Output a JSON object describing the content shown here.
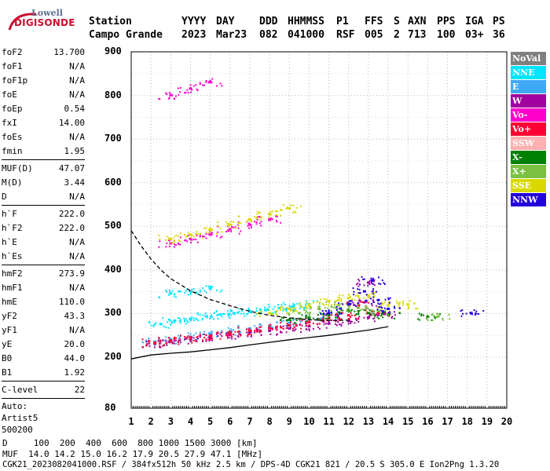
{
  "logo": {
    "line1": "Lowell",
    "line2": "DIGISONDE"
  },
  "header": {
    "row1": [
      "Station",
      "YYYY",
      "DAY",
      "DDD",
      "HHMMSS",
      "P1",
      "FFS",
      "S",
      "AXN",
      "PPS",
      "IGA",
      "PS"
    ],
    "row2": [
      "Campo Grande",
      "2023",
      "Mar23",
      "082",
      "041000",
      "RSF",
      "005",
      "2",
      "713",
      "100",
      "03+",
      "36"
    ]
  },
  "params": {
    "group1": [
      {
        "name": "foF2",
        "value": "13.700"
      },
      {
        "name": "foF1",
        "value": "N/A"
      },
      {
        "name": "foF1p",
        "value": "N/A"
      },
      {
        "name": "foE",
        "value": "N/A"
      },
      {
        "name": "foEp",
        "value": "0.54"
      },
      {
        "name": "fxI",
        "value": "14.00"
      },
      {
        "name": "foEs",
        "value": "N/A"
      },
      {
        "name": "fmin",
        "value": "1.95"
      }
    ],
    "group2": [
      {
        "name": "MUF(D)",
        "value": "47.07"
      },
      {
        "name": "M(D)",
        "value": "3.44"
      },
      {
        "name": "D",
        "value": "N/A"
      }
    ],
    "group3": [
      {
        "name": "h`F",
        "value": "222.0"
      },
      {
        "name": "h`F2",
        "value": "222.0"
      },
      {
        "name": "h`E",
        "value": "N/A"
      },
      {
        "name": "h`Es",
        "value": "N/A"
      }
    ],
    "group4": [
      {
        "name": "hmF2",
        "value": "273.9"
      },
      {
        "name": "hmF1",
        "value": "N/A"
      },
      {
        "name": "hmE",
        "value": "110.0"
      },
      {
        "name": "yF2",
        "value": "43.3"
      },
      {
        "name": "yF1",
        "value": "N/A"
      },
      {
        "name": "yE",
        "value": "20.0"
      },
      {
        "name": "B0",
        "value": "44.0"
      },
      {
        "name": "B1",
        "value": "1.92"
      }
    ],
    "group5": [
      {
        "name": "C-level",
        "value": "22"
      }
    ],
    "auto": [
      "Auto:",
      "Artist5",
      "500200"
    ]
  },
  "legend": [
    {
      "label": "NoVal",
      "color": "#808080"
    },
    {
      "label": "NNE",
      "color": "#00e5ff"
    },
    {
      "label": "E",
      "color": "#3fa9f5"
    },
    {
      "label": "W",
      "color": "#a0009e"
    },
    {
      "label": "Vo-",
      "color": "#ff00cc"
    },
    {
      "label": "Vo+",
      "color": "#ff0033"
    },
    {
      "label": "SSW",
      "color": "#ffb0b0"
    },
    {
      "label": "X-",
      "color": "#008000"
    },
    {
      "label": "X+",
      "color": "#7ac142"
    },
    {
      "label": "SSE",
      "color": "#d9d900"
    },
    {
      "label": "NNW",
      "color": "#2200dd"
    }
  ],
  "chart_data": {
    "type": "scatter",
    "x_ticks": [
      "1",
      "2",
      "3",
      "4",
      "5",
      "6",
      "7",
      "8",
      "9",
      "10",
      "11",
      "12",
      "13",
      "14",
      "15",
      "16",
      "17",
      "18",
      "19",
      "20"
    ],
    "y_ticks": [
      "80",
      "200",
      "300",
      "400",
      "500",
      "600",
      "700",
      "800",
      "900"
    ],
    "xlim": [
      1,
      20
    ],
    "ylim": [
      80,
      900
    ],
    "grid": true,
    "series": [
      {
        "name": "NNE",
        "color": "#00e5ff",
        "points": [
          [
            2.5,
            275
          ],
          [
            3.2,
            283
          ],
          [
            4,
            287
          ],
          [
            4.8,
            293
          ],
          [
            5.5,
            297
          ],
          [
            6.2,
            300
          ],
          [
            7,
            303
          ],
          [
            7.8,
            307
          ],
          [
            8.5,
            312
          ],
          [
            9.2,
            316
          ],
          [
            10,
            320
          ],
          [
            3,
            345
          ],
          [
            4,
            350
          ],
          [
            5,
            356
          ]
        ]
      },
      {
        "name": "E",
        "color": "#3fa9f5",
        "points": [
          [
            2.2,
            235
          ],
          [
            3,
            240
          ],
          [
            4,
            246
          ],
          [
            5,
            252
          ],
          [
            6,
            258
          ],
          [
            7,
            265
          ],
          [
            8,
            271
          ],
          [
            9,
            278
          ],
          [
            10,
            286
          ],
          [
            11,
            295
          ]
        ]
      },
      {
        "name": "W",
        "color": "#a0009e",
        "points": [
          [
            2.2,
            230
          ],
          [
            3,
            235
          ],
          [
            4,
            240
          ],
          [
            5,
            245
          ],
          [
            6,
            250
          ],
          [
            7,
            255
          ],
          [
            8,
            260
          ],
          [
            9,
            265
          ],
          [
            10,
            270
          ],
          [
            11,
            276
          ],
          [
            12,
            282
          ],
          [
            13,
            290
          ],
          [
            13.8,
            298
          ],
          [
            12.8,
            325
          ],
          [
            13,
            370
          ]
        ]
      },
      {
        "name": "Vo-",
        "color": "#ff00cc",
        "points": [
          [
            3,
            460
          ],
          [
            4,
            470
          ],
          [
            5,
            480
          ],
          [
            6,
            492
          ],
          [
            7,
            503
          ],
          [
            8,
            515
          ],
          [
            3,
            800
          ],
          [
            4,
            815
          ],
          [
            5,
            830
          ]
        ]
      },
      {
        "name": "Vo+",
        "color": "#ff0033",
        "points": [
          [
            2.2,
            232
          ],
          [
            3,
            237
          ],
          [
            4,
            242
          ],
          [
            5,
            248
          ],
          [
            6,
            254
          ],
          [
            7,
            260
          ],
          [
            8,
            266
          ],
          [
            9,
            272
          ],
          [
            10,
            280
          ],
          [
            11,
            288
          ],
          [
            12,
            295
          ],
          [
            12.5,
            318
          ],
          [
            13.5,
            300
          ]
        ]
      },
      {
        "name": "X-",
        "color": "#008000",
        "points": [
          [
            9,
            285
          ],
          [
            10,
            290
          ],
          [
            11,
            296
          ],
          [
            12,
            305
          ],
          [
            13,
            300
          ],
          [
            14,
            296
          ],
          [
            16,
            292
          ]
        ]
      },
      {
        "name": "X+",
        "color": "#7ac142",
        "points": [
          [
            9.5,
            300
          ],
          [
            10.5,
            310
          ],
          [
            11.5,
            318
          ],
          [
            12.5,
            312
          ],
          [
            13.5,
            305
          ],
          [
            16.5,
            292
          ]
        ]
      },
      {
        "name": "SSE",
        "color": "#d9d900",
        "points": [
          [
            3,
            470
          ],
          [
            4,
            480
          ],
          [
            5,
            490
          ],
          [
            6,
            503
          ],
          [
            7,
            515
          ],
          [
            8,
            527
          ],
          [
            9,
            540
          ],
          [
            8,
            300
          ],
          [
            9,
            310
          ],
          [
            10,
            318
          ],
          [
            11,
            328
          ],
          [
            12,
            335
          ],
          [
            13,
            340
          ],
          [
            14,
            318
          ],
          [
            15,
            320
          ]
        ]
      },
      {
        "name": "NNW",
        "color": "#2200dd",
        "points": [
          [
            11,
            300
          ],
          [
            12,
            320
          ],
          [
            12.8,
            350
          ],
          [
            13.2,
            375
          ],
          [
            13.5,
            330
          ],
          [
            14,
            310
          ],
          [
            18.2,
            300
          ]
        ]
      }
    ],
    "lines": [
      {
        "name": "dashed",
        "style": "dashed",
        "color": "#000000",
        "points": [
          [
            1,
            490
          ],
          [
            1.5,
            455
          ],
          [
            2,
            425
          ],
          [
            2.5,
            400
          ],
          [
            3,
            380
          ],
          [
            4,
            352
          ],
          [
            5,
            332
          ],
          [
            6,
            318
          ],
          [
            7,
            305
          ],
          [
            8,
            296
          ],
          [
            9,
            290
          ],
          [
            10,
            286
          ],
          [
            11,
            284
          ],
          [
            12,
            285
          ]
        ]
      },
      {
        "name": "solid",
        "style": "solid",
        "color": "#000000",
        "points": [
          [
            1,
            196
          ],
          [
            2,
            205
          ],
          [
            3,
            209
          ],
          [
            4,
            212
          ],
          [
            5,
            217
          ],
          [
            6,
            222
          ],
          [
            7,
            228
          ],
          [
            8,
            234
          ],
          [
            9,
            240
          ],
          [
            10,
            245
          ],
          [
            11,
            250
          ],
          [
            12,
            256
          ],
          [
            13,
            262
          ],
          [
            14,
            270
          ]
        ]
      }
    ]
  },
  "bottom": {
    "d_row": "D     100  200  400  600  800 1000 1500 3000 [km]",
    "muf_row": "MUF  14.0 14.2 15.0 16.2 17.9 20.5 27.9 47.1 [MHz]",
    "footer": "CGK21_2023082041000.RSF / 384fx512h 50 kHz 2.5 km / DPS-4D CGK21 821 / 20.5 S 305.0 E Ion2Png 1.3.20"
  }
}
